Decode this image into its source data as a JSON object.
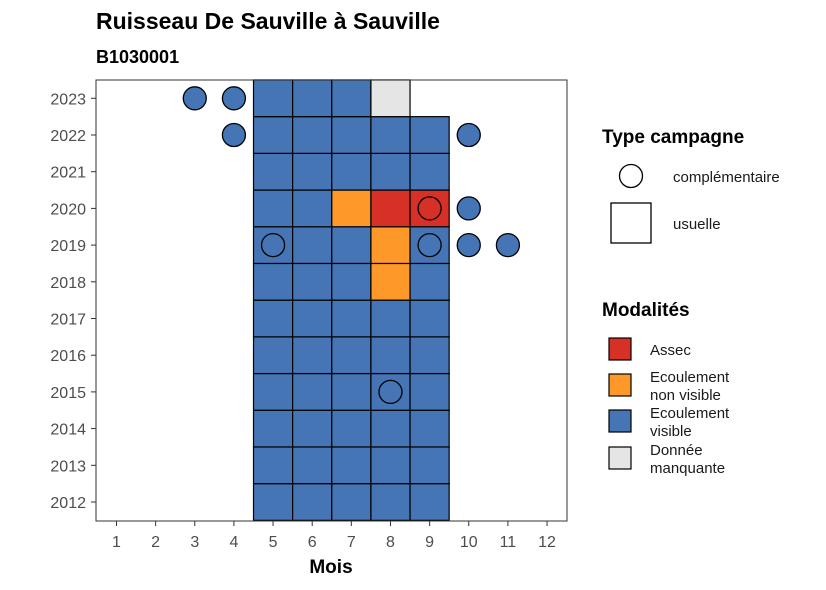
{
  "chart_data": {
    "type": "heatmap",
    "title": "Ruisseau De Sauville à Sauville",
    "subtitle": "B1030001",
    "xlabel": "Mois",
    "ylabel": "",
    "x": [
      1,
      2,
      3,
      4,
      5,
      6,
      7,
      8,
      9,
      10,
      11,
      12
    ],
    "y": [
      2012,
      2013,
      2014,
      2015,
      2016,
      2017,
      2018,
      2019,
      2020,
      2021,
      2022,
      2023
    ],
    "x_tick_labels": [
      "1",
      "2",
      "3",
      "4",
      "5",
      "6",
      "7",
      "8",
      "9",
      "10",
      "11",
      "12"
    ],
    "y_tick_labels": [
      "2012",
      "2013",
      "2014",
      "2015",
      "2016",
      "2017",
      "2018",
      "2019",
      "2020",
      "2021",
      "2022",
      "2023"
    ],
    "grid": false,
    "legend_position": "right",
    "colors": {
      "Assec": "#D73027",
      "Ecoulement non visible": "#FE9929",
      "Ecoulement visible": "#4575B4",
      "Donnée manquante": "#E5E5E5"
    },
    "cells": [
      {
        "year": 2012,
        "month": 5,
        "modalite": "Ecoulement visible",
        "type": "usuelle"
      },
      {
        "year": 2012,
        "month": 6,
        "modalite": "Ecoulement visible",
        "type": "usuelle"
      },
      {
        "year": 2012,
        "month": 7,
        "modalite": "Ecoulement visible",
        "type": "usuelle"
      },
      {
        "year": 2012,
        "month": 8,
        "modalite": "Ecoulement visible",
        "type": "usuelle"
      },
      {
        "year": 2012,
        "month": 9,
        "modalite": "Ecoulement visible",
        "type": "usuelle"
      },
      {
        "year": 2013,
        "month": 5,
        "modalite": "Ecoulement visible",
        "type": "usuelle"
      },
      {
        "year": 2013,
        "month": 6,
        "modalite": "Ecoulement visible",
        "type": "usuelle"
      },
      {
        "year": 2013,
        "month": 7,
        "modalite": "Ecoulement visible",
        "type": "usuelle"
      },
      {
        "year": 2013,
        "month": 8,
        "modalite": "Ecoulement visible",
        "type": "usuelle"
      },
      {
        "year": 2013,
        "month": 9,
        "modalite": "Ecoulement visible",
        "type": "usuelle"
      },
      {
        "year": 2014,
        "month": 5,
        "modalite": "Ecoulement visible",
        "type": "usuelle"
      },
      {
        "year": 2014,
        "month": 6,
        "modalite": "Ecoulement visible",
        "type": "usuelle"
      },
      {
        "year": 2014,
        "month": 7,
        "modalite": "Ecoulement visible",
        "type": "usuelle"
      },
      {
        "year": 2014,
        "month": 8,
        "modalite": "Ecoulement visible",
        "type": "usuelle"
      },
      {
        "year": 2014,
        "month": 9,
        "modalite": "Ecoulement visible",
        "type": "usuelle"
      },
      {
        "year": 2015,
        "month": 5,
        "modalite": "Ecoulement visible",
        "type": "usuelle"
      },
      {
        "year": 2015,
        "month": 6,
        "modalite": "Ecoulement visible",
        "type": "usuelle"
      },
      {
        "year": 2015,
        "month": 7,
        "modalite": "Ecoulement visible",
        "type": "usuelle"
      },
      {
        "year": 2015,
        "month": 8,
        "modalite": "Ecoulement visible",
        "type": "usuelle"
      },
      {
        "year": 2015,
        "month": 9,
        "modalite": "Ecoulement visible",
        "type": "usuelle"
      },
      {
        "year": 2016,
        "month": 5,
        "modalite": "Ecoulement visible",
        "type": "usuelle"
      },
      {
        "year": 2016,
        "month": 6,
        "modalite": "Ecoulement visible",
        "type": "usuelle"
      },
      {
        "year": 2016,
        "month": 7,
        "modalite": "Ecoulement visible",
        "type": "usuelle"
      },
      {
        "year": 2016,
        "month": 8,
        "modalite": "Ecoulement visible",
        "type": "usuelle"
      },
      {
        "year": 2016,
        "month": 9,
        "modalite": "Ecoulement visible",
        "type": "usuelle"
      },
      {
        "year": 2017,
        "month": 5,
        "modalite": "Ecoulement visible",
        "type": "usuelle"
      },
      {
        "year": 2017,
        "month": 6,
        "modalite": "Ecoulement visible",
        "type": "usuelle"
      },
      {
        "year": 2017,
        "month": 7,
        "modalite": "Ecoulement visible",
        "type": "usuelle"
      },
      {
        "year": 2017,
        "month": 8,
        "modalite": "Ecoulement visible",
        "type": "usuelle"
      },
      {
        "year": 2017,
        "month": 9,
        "modalite": "Ecoulement visible",
        "type": "usuelle"
      },
      {
        "year": 2018,
        "month": 5,
        "modalite": "Ecoulement visible",
        "type": "usuelle"
      },
      {
        "year": 2018,
        "month": 6,
        "modalite": "Ecoulement visible",
        "type": "usuelle"
      },
      {
        "year": 2018,
        "month": 7,
        "modalite": "Ecoulement visible",
        "type": "usuelle"
      },
      {
        "year": 2018,
        "month": 8,
        "modalite": "Ecoulement non visible",
        "type": "usuelle"
      },
      {
        "year": 2018,
        "month": 9,
        "modalite": "Ecoulement visible",
        "type": "usuelle"
      },
      {
        "year": 2019,
        "month": 5,
        "modalite": "Ecoulement visible",
        "type": "usuelle"
      },
      {
        "year": 2019,
        "month": 6,
        "modalite": "Ecoulement visible",
        "type": "usuelle"
      },
      {
        "year": 2019,
        "month": 7,
        "modalite": "Ecoulement visible",
        "type": "usuelle"
      },
      {
        "year": 2019,
        "month": 8,
        "modalite": "Ecoulement non visible",
        "type": "usuelle"
      },
      {
        "year": 2019,
        "month": 9,
        "modalite": "Ecoulement visible",
        "type": "usuelle"
      },
      {
        "year": 2020,
        "month": 5,
        "modalite": "Ecoulement visible",
        "type": "usuelle"
      },
      {
        "year": 2020,
        "month": 6,
        "modalite": "Ecoulement visible",
        "type": "usuelle"
      },
      {
        "year": 2020,
        "month": 7,
        "modalite": "Ecoulement non visible",
        "type": "usuelle"
      },
      {
        "year": 2020,
        "month": 8,
        "modalite": "Assec",
        "type": "usuelle"
      },
      {
        "year": 2020,
        "month": 9,
        "modalite": "Assec",
        "type": "usuelle"
      },
      {
        "year": 2021,
        "month": 5,
        "modalite": "Ecoulement visible",
        "type": "usuelle"
      },
      {
        "year": 2021,
        "month": 6,
        "modalite": "Ecoulement visible",
        "type": "usuelle"
      },
      {
        "year": 2021,
        "month": 7,
        "modalite": "Ecoulement visible",
        "type": "usuelle"
      },
      {
        "year": 2021,
        "month": 8,
        "modalite": "Ecoulement visible",
        "type": "usuelle"
      },
      {
        "year": 2021,
        "month": 9,
        "modalite": "Ecoulement visible",
        "type": "usuelle"
      },
      {
        "year": 2022,
        "month": 5,
        "modalite": "Ecoulement visible",
        "type": "usuelle"
      },
      {
        "year": 2022,
        "month": 6,
        "modalite": "Ecoulement visible",
        "type": "usuelle"
      },
      {
        "year": 2022,
        "month": 7,
        "modalite": "Ecoulement visible",
        "type": "usuelle"
      },
      {
        "year": 2022,
        "month": 8,
        "modalite": "Ecoulement visible",
        "type": "usuelle"
      },
      {
        "year": 2022,
        "month": 9,
        "modalite": "Ecoulement visible",
        "type": "usuelle"
      },
      {
        "year": 2023,
        "month": 5,
        "modalite": "Ecoulement visible",
        "type": "usuelle"
      },
      {
        "year": 2023,
        "month": 6,
        "modalite": "Ecoulement visible",
        "type": "usuelle"
      },
      {
        "year": 2023,
        "month": 7,
        "modalite": "Ecoulement visible",
        "type": "usuelle"
      },
      {
        "year": 2023,
        "month": 8,
        "modalite": "Donnée manquante",
        "type": "usuelle"
      }
    ],
    "points": [
      {
        "year": 2023,
        "month": 3,
        "modalite": "Ecoulement visible",
        "type": "complémentaire"
      },
      {
        "year": 2023,
        "month": 4,
        "modalite": "Ecoulement visible",
        "type": "complémentaire"
      },
      {
        "year": 2022,
        "month": 4,
        "modalite": "Ecoulement visible",
        "type": "complémentaire"
      },
      {
        "year": 2022,
        "month": 10,
        "modalite": "Ecoulement visible",
        "type": "complémentaire"
      },
      {
        "year": 2020,
        "month": 9,
        "modalite": "Assec",
        "type": "complémentaire"
      },
      {
        "year": 2020,
        "month": 10,
        "modalite": "Ecoulement visible",
        "type": "complémentaire"
      },
      {
        "year": 2019,
        "month": 5,
        "modalite": "Ecoulement visible",
        "type": "complémentaire"
      },
      {
        "year": 2019,
        "month": 9,
        "modalite": "Ecoulement visible",
        "type": "complémentaire"
      },
      {
        "year": 2019,
        "month": 10,
        "modalite": "Ecoulement visible",
        "type": "complémentaire"
      },
      {
        "year": 2019,
        "month": 11,
        "modalite": "Ecoulement visible",
        "type": "complémentaire"
      },
      {
        "year": 2015,
        "month": 8,
        "modalite": "Ecoulement visible",
        "type": "complémentaire"
      }
    ],
    "legend": {
      "type_title": "Type campagne",
      "type_items": [
        {
          "label": "complémentaire",
          "shape": "circle"
        },
        {
          "label": "usuelle",
          "shape": "square"
        }
      ],
      "modalite_title": "Modalités",
      "modalite_items": [
        {
          "key": "Assec",
          "lines": [
            "Assec"
          ]
        },
        {
          "key": "Ecoulement non visible",
          "lines": [
            "Ecoulement",
            "non visible"
          ]
        },
        {
          "key": "Ecoulement visible",
          "lines": [
            "Ecoulement",
            "visible"
          ]
        },
        {
          "key": "Donnée manquante",
          "lines": [
            "Donnée",
            "manquante"
          ]
        }
      ]
    }
  }
}
